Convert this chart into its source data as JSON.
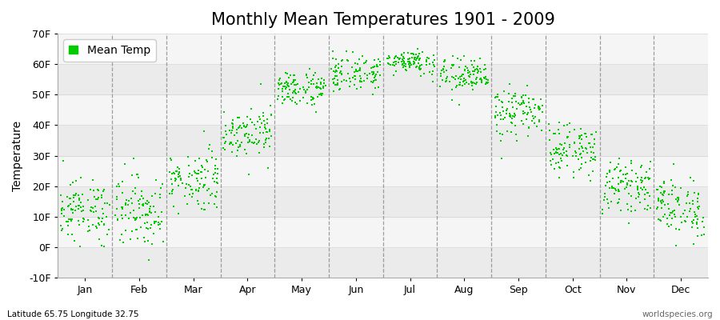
{
  "title": "Monthly Mean Temperatures 1901 - 2009",
  "ylabel": "Temperature",
  "xlabel_bottom_left": "Latitude 65.75 Longitude 32.75",
  "xlabel_bottom_right": "worldspecies.org",
  "legend_label": "Mean Temp",
  "dot_color": "#00CC00",
  "dot_size": 3,
  "background_color": "#FFFFFF",
  "band_color_even": "#EBEBEB",
  "band_color_odd": "#F5F5F5",
  "ylim": [
    -10,
    70
  ],
  "yticks": [
    -10,
    0,
    10,
    20,
    30,
    40,
    50,
    60,
    70
  ],
  "ytick_labels": [
    "-10F",
    "0F",
    "10F",
    "20F",
    "30F",
    "40F",
    "50F",
    "60F",
    "70F"
  ],
  "months": [
    "Jan",
    "Feb",
    "Mar",
    "Apr",
    "May",
    "Jun",
    "Jul",
    "Aug",
    "Sep",
    "Oct",
    "Nov",
    "Dec"
  ],
  "title_fontsize": 15,
  "axis_fontsize": 10,
  "tick_fontsize": 9,
  "monthly_means": [
    12,
    12,
    22,
    38,
    52,
    57,
    61,
    56,
    44,
    32,
    20,
    13
  ],
  "monthly_stds": [
    5,
    6,
    5,
    4,
    3,
    3,
    2,
    3,
    4,
    4,
    4,
    5
  ]
}
